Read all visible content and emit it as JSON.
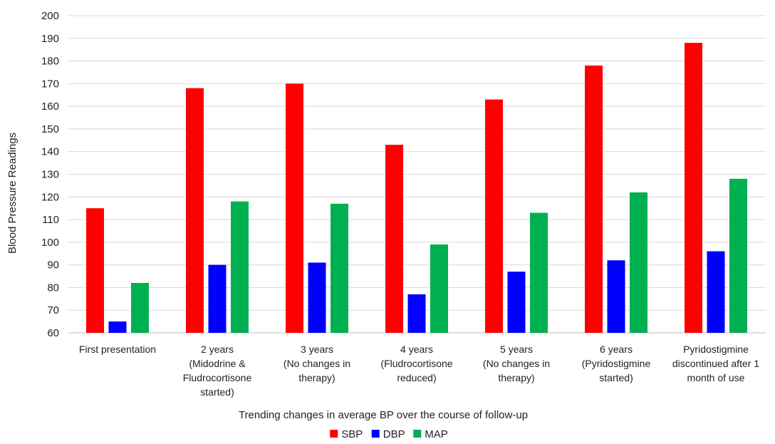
{
  "chart_data": {
    "type": "bar",
    "title": "",
    "xlabel": "Trending changes in average BP over the course of follow-up",
    "ylabel": "Blood Pressure Readings",
    "ylim": [
      60,
      200
    ],
    "yticks": [
      60,
      70,
      80,
      90,
      100,
      110,
      120,
      130,
      140,
      150,
      160,
      170,
      180,
      190,
      200
    ],
    "grid": true,
    "legend_position": "bottom",
    "categories": [
      [
        "First presentation"
      ],
      [
        "2 years",
        "(Midodrine &",
        "Fludrocortisone",
        "started)"
      ],
      [
        "3 years",
        "(No changes in",
        "therapy)"
      ],
      [
        "4 years",
        "(Fludrocortisone",
        "reduced)"
      ],
      [
        "5 years",
        "(No changes in",
        "therapy)"
      ],
      [
        "6 years",
        "(Pyridostigmine",
        "started)"
      ],
      [
        "Pyridostigmine",
        "discontinued after 1",
        "month of use"
      ]
    ],
    "series": [
      {
        "name": "SBP",
        "color": "#ff0000",
        "values": [
          115,
          168,
          170,
          143,
          163,
          178,
          188
        ]
      },
      {
        "name": "DBP",
        "color": "#0000ff",
        "values": [
          65,
          90,
          91,
          77,
          87,
          92,
          96
        ]
      },
      {
        "name": "MAP",
        "color": "#00b050",
        "values": [
          82,
          118,
          117,
          99,
          113,
          122,
          128
        ]
      }
    ]
  }
}
